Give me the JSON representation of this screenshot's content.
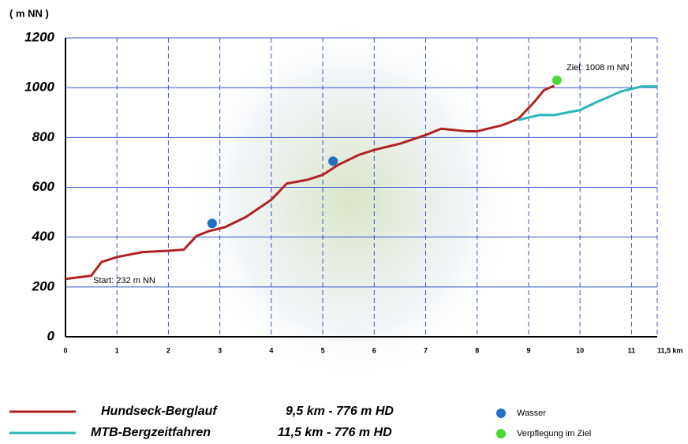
{
  "chart_data": {
    "type": "line",
    "ylabel": "( m NN )",
    "annotations": [
      "Start: 232 m NN",
      "Ziel: 1008 m NN"
    ],
    "xlim": [
      0,
      11.5
    ],
    "xticks": [
      0,
      1,
      2,
      3,
      4,
      5,
      6,
      7,
      8,
      9,
      10,
      11,
      {
        "value": 11.5,
        "label": "11,5 km"
      }
    ],
    "ylim": [
      0,
      1200
    ],
    "yticks": [
      0,
      200,
      400,
      600,
      800,
      1000,
      1200
    ],
    "grid": true,
    "series": [
      {
        "name": "Hundseck-Berglauf",
        "detail": "9,5 km - 776 m HD",
        "color": "#b22222",
        "x": [
          0,
          0.5,
          0.7,
          1,
          1.5,
          2,
          2.3,
          2.55,
          2.8,
          3.1,
          3.5,
          4,
          4.3,
          4.7,
          5,
          5.3,
          5.7,
          6,
          6.5,
          7,
          7.3,
          7.8,
          8,
          8.5,
          8.8,
          9.1,
          9.3,
          9.5
        ],
        "values": [
          232,
          245,
          300,
          320,
          340,
          345,
          350,
          405,
          425,
          440,
          480,
          550,
          615,
          630,
          650,
          690,
          730,
          750,
          775,
          810,
          835,
          825,
          825,
          850,
          875,
          940,
          990,
          1008
        ]
      },
      {
        "name": "MTB-Bergzeitfahren",
        "detail": "11,5 km - 776 m HD",
        "color": "#2bb5b5",
        "x": [
          8.8,
          9.2,
          9.5,
          10,
          10.3,
          10.8,
          11.2,
          11.5
        ],
        "values": [
          870,
          890,
          890,
          910,
          940,
          985,
          1005,
          1005
        ]
      }
    ],
    "markers": [
      {
        "name": "Wasser",
        "color": "#1f6fc4",
        "x": [
          2.85,
          5.2
        ],
        "values": [
          455,
          705
        ]
      },
      {
        "name": "Verpflegung im Ziel",
        "color": "#44dd33",
        "x": [
          9.55
        ],
        "values": [
          1030
        ]
      }
    ]
  }
}
